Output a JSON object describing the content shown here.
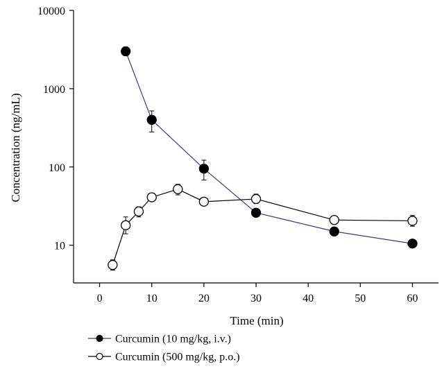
{
  "chart_data": {
    "type": "line",
    "title": "",
    "xlabel": "Time (min)",
    "ylabel": "Concentration (ng/mL)",
    "xlim": [
      -5,
      65
    ],
    "ylim": [
      3.3,
      10000
    ],
    "yscale": "log",
    "xticks": [
      0,
      10,
      20,
      30,
      40,
      50,
      60
    ],
    "yticks": [
      10,
      100,
      1000,
      10000
    ],
    "xtick_labels": [
      "0",
      "10",
      "20",
      "30",
      "40",
      "50",
      "60"
    ],
    "ytick_labels": [
      "10",
      "100",
      "1000",
      "10000"
    ],
    "grid": false,
    "legend_position": "bottom",
    "series": [
      {
        "name": "Curcumin (10 mg/kg, i.v.)",
        "marker": "filled-circle",
        "line_color": "#3b3b7a",
        "x": [
          5,
          10,
          20,
          30,
          45,
          60
        ],
        "y": [
          3000,
          400,
          95,
          26,
          15,
          10.5
        ],
        "err_low": [
          2650,
          280,
          68,
          24,
          14,
          10
        ],
        "err_high": [
          3400,
          520,
          122,
          29,
          16,
          11
        ]
      },
      {
        "name": "Curcumin (500 mg/kg, p.o.)",
        "marker": "open-circle",
        "line_color": "#000000",
        "x": [
          2.5,
          5,
          7.5,
          10,
          15,
          20,
          30,
          45,
          60
        ],
        "y": [
          5.6,
          18,
          27,
          41,
          52,
          36,
          39,
          21,
          20.5
        ],
        "err_low": [
          4.8,
          14,
          23,
          37,
          44,
          32,
          34,
          19.5,
          17.5
        ],
        "err_high": [
          6.5,
          23,
          31,
          45,
          60,
          40,
          45,
          22.5,
          24
        ]
      }
    ]
  }
}
